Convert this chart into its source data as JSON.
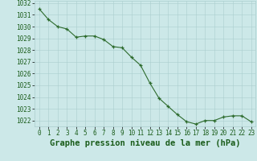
{
  "x": [
    0,
    1,
    2,
    3,
    4,
    5,
    6,
    7,
    8,
    9,
    10,
    11,
    12,
    13,
    14,
    15,
    16,
    17,
    18,
    19,
    20,
    21,
    22,
    23
  ],
  "y": [
    1031.5,
    1030.6,
    1030.0,
    1029.8,
    1029.1,
    1029.2,
    1029.2,
    1028.9,
    1028.3,
    1028.2,
    1027.4,
    1026.7,
    1025.2,
    1023.9,
    1023.2,
    1022.5,
    1021.9,
    1021.7,
    1022.0,
    1022.0,
    1022.3,
    1022.4,
    1022.4,
    1021.9
  ],
  "line_color": "#2d6b2d",
  "marker_color": "#2d6b2d",
  "bg_color": "#cce8e8",
  "grid_color": "#aacece",
  "xlabel": "Graphe pression niveau de la mer (hPa)",
  "xlabel_color": "#1a5c1a",
  "tick_color": "#1a5c1a",
  "ylim_min": 1021.5,
  "ylim_max": 1032.2,
  "ytick_values": [
    1022,
    1023,
    1024,
    1025,
    1026,
    1027,
    1028,
    1029,
    1030,
    1031,
    1032
  ],
  "xtick_labels": [
    "0",
    "1",
    "2",
    "3",
    "4",
    "5",
    "6",
    "7",
    "8",
    "9",
    "10",
    "11",
    "12",
    "13",
    "14",
    "15",
    "16",
    "17",
    "18",
    "19",
    "20",
    "21",
    "22",
    "23"
  ],
  "tick_fontsize": 5.5,
  "xlabel_fontsize": 7.5
}
